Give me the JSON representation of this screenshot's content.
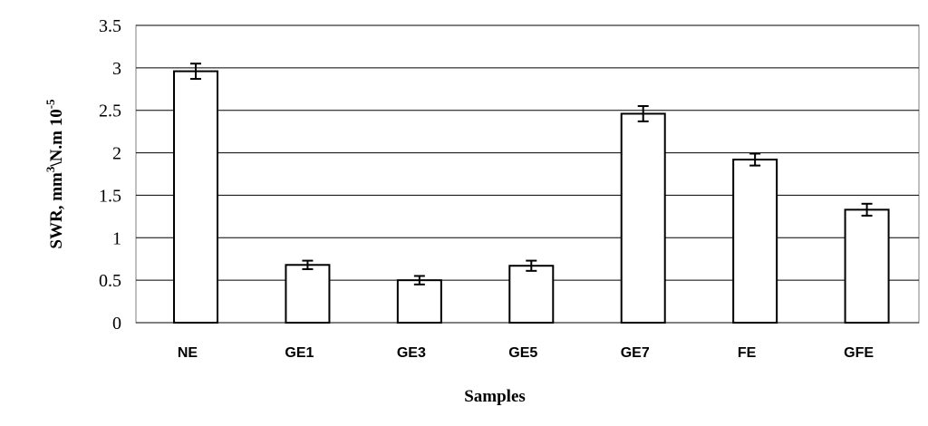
{
  "chart_data": {
    "type": "bar",
    "categories": [
      "NE",
      "GE1",
      "GE3",
      "GE5",
      "GE7",
      "FE",
      "GFE"
    ],
    "values": [
      2.96,
      0.68,
      0.5,
      0.67,
      2.46,
      1.92,
      1.33
    ],
    "error": [
      0.09,
      0.05,
      0.05,
      0.06,
      0.09,
      0.07,
      0.07
    ],
    "title": "",
    "xlabel": "Samples",
    "ylabel": {
      "main": "SWR, mm",
      "sup1": "3",
      "mid": "\\N.m 10",
      "sup2": "-5"
    },
    "ylim": [
      0,
      3.5
    ],
    "yticks": [
      "0",
      "0.5",
      "1",
      "1.5",
      "2",
      "2.5",
      "3",
      "3.5"
    ],
    "grid": true,
    "legend": "none",
    "colors": {
      "bar_fill": "#ffffff",
      "bar_stroke": "#000000",
      "grid": "#000000"
    }
  }
}
